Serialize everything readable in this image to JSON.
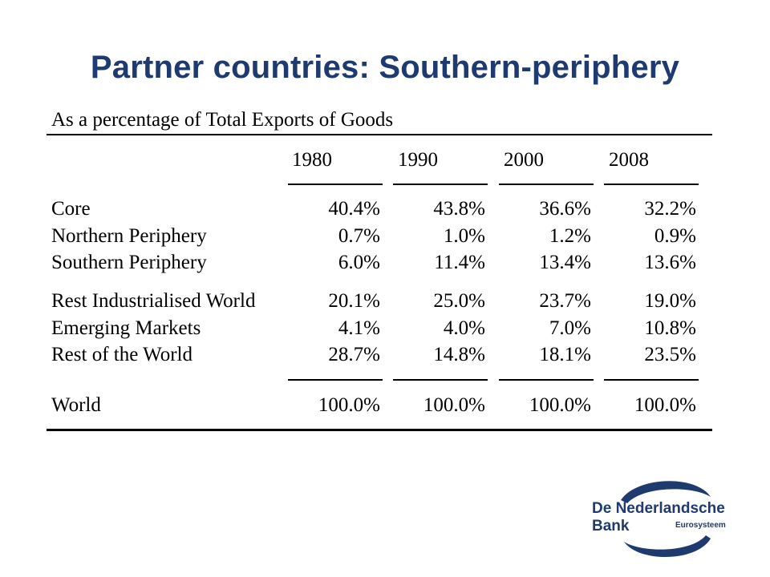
{
  "title": "Partner countries: Southern-periphery",
  "table": {
    "subtitle": "As a percentage of Total Exports of Goods",
    "years": [
      "1980",
      "1990",
      "2000",
      "2008"
    ],
    "group1": [
      {
        "label": "Core",
        "values": [
          "40.4%",
          "43.8%",
          "36.6%",
          "32.2%"
        ]
      },
      {
        "label": "Northern Periphery",
        "values": [
          "0.7%",
          "1.0%",
          "1.2%",
          "0.9%"
        ]
      },
      {
        "label": "Southern Periphery",
        "values": [
          "6.0%",
          "11.4%",
          "13.4%",
          "13.6%"
        ]
      }
    ],
    "group2": [
      {
        "label": "Rest Industrialised World",
        "values": [
          "20.1%",
          "25.0%",
          "23.7%",
          "19.0%"
        ]
      },
      {
        "label": "Emerging Markets",
        "values": [
          "4.1%",
          "4.0%",
          "7.0%",
          "10.8%"
        ]
      },
      {
        "label": "Rest of the World",
        "values": [
          "28.7%",
          "14.8%",
          "18.1%",
          "23.5%"
        ]
      }
    ],
    "total": {
      "label": "World",
      "values": [
        "100.0%",
        "100.0%",
        "100.0%",
        "100.0%"
      ]
    }
  },
  "logo": {
    "name": "De Nederlandsche Bank",
    "sub": "Eurosysteem",
    "color": "#1f3a6e"
  }
}
